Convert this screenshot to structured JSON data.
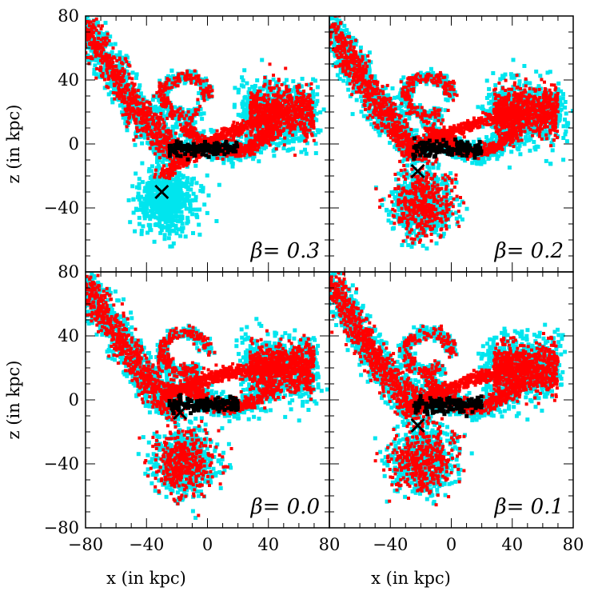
{
  "chart_data": [
    {
      "type": "scatter",
      "panel": "top-left",
      "label": "β= 0.3",
      "x_range": [
        -80,
        80
      ],
      "y_range": [
        -80,
        80
      ],
      "xticks": [],
      "yticks": [
        "80",
        "40",
        "0",
        "−40",
        "−80"
      ],
      "marker_x": [
        -30,
        -30
      ],
      "series": [
        {
          "color": "#00e5ee",
          "role": "cyan particles"
        },
        {
          "color": "#ff0000",
          "role": "red particles"
        },
        {
          "color": "#000000",
          "role": "black particles"
        }
      ]
    },
    {
      "type": "scatter",
      "panel": "top-right",
      "label": "β= 0.2",
      "x_range": [
        -80,
        80
      ],
      "y_range": [
        -80,
        80
      ],
      "xticks": [],
      "yticks": [],
      "marker_x": [
        -22,
        -17
      ],
      "series": [
        {
          "color": "#00e5ee"
        },
        {
          "color": "#ff0000"
        },
        {
          "color": "#000000"
        }
      ]
    },
    {
      "type": "scatter",
      "panel": "bottom-left",
      "label": "β= 0.0",
      "x_range": [
        -80,
        80
      ],
      "y_range": [
        -80,
        80
      ],
      "xticks": [
        "−80",
        "−40",
        "0",
        "40",
        "80"
      ],
      "yticks": [
        "80",
        "40",
        "0",
        "−40",
        "−80"
      ],
      "marker_x": [
        -18,
        -8
      ],
      "series": [
        {
          "color": "#00e5ee"
        },
        {
          "color": "#ff0000"
        },
        {
          "color": "#000000"
        }
      ]
    },
    {
      "type": "scatter",
      "panel": "bottom-right",
      "label": "β= 0.1",
      "x_range": [
        -80,
        80
      ],
      "y_range": [
        -80,
        80
      ],
      "xticks": [
        "−40",
        "0",
        "40",
        "80"
      ],
      "yticks": [],
      "marker_x": [
        -22,
        -16
      ],
      "series": [
        {
          "color": "#00e5ee"
        },
        {
          "color": "#ff0000"
        },
        {
          "color": "#000000"
        }
      ]
    }
  ],
  "axes": {
    "xlabel": "x (in kpc)",
    "ylabel": "z (in kpc)"
  },
  "colors": {
    "cyan": "#00e5ee",
    "red": "#ff0000",
    "black": "#000000"
  }
}
